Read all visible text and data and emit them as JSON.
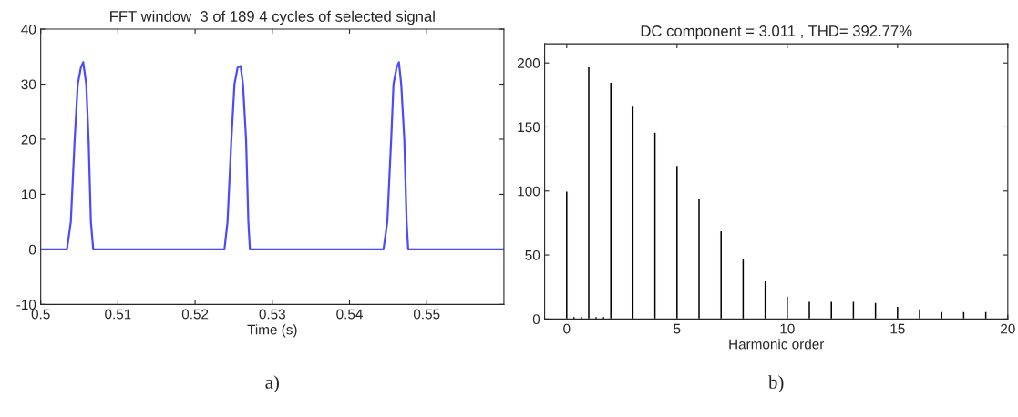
{
  "chart_data": [
    {
      "type": "line",
      "title": "FFT window  3 of 189 4 cycles of selected signal",
      "xlabel": "Time (s)",
      "annotations": [
        "a)"
      ],
      "xlim": [
        0.5,
        0.56
      ],
      "xticks": [
        0.5,
        0.51,
        0.52,
        0.53,
        0.54,
        0.55
      ],
      "ylim": [
        -10,
        40
      ],
      "yticks": [
        -10,
        0,
        10,
        20,
        30,
        40
      ],
      "grid": false,
      "legend": false,
      "series": [
        {
          "color": "#4a4aff",
          "x": [
            0.5,
            0.5034,
            0.5039,
            0.5044,
            0.5048,
            0.5052,
            0.5055,
            0.5059,
            0.5062,
            0.5065,
            0.5068,
            0.5238,
            0.5242,
            0.5247,
            0.5251,
            0.5255,
            0.5259,
            0.5262,
            0.5266,
            0.5269,
            0.5271,
            0.5444,
            0.5449,
            0.5454,
            0.5457,
            0.5461,
            0.5464,
            0.5467,
            0.5471,
            0.5474,
            0.5476,
            0.56
          ],
          "values": [
            0,
            0,
            5,
            20,
            30,
            33,
            34,
            30,
            20,
            5,
            0,
            0,
            5,
            20,
            30,
            33,
            33.3,
            30,
            20,
            5,
            0,
            0,
            5,
            20,
            30,
            33,
            34,
            30,
            20,
            5,
            0,
            0
          ]
        }
      ]
    },
    {
      "type": "bar",
      "title": "DC component = 3.011 , THD= 392.77%",
      "xlabel": "Harmonic order",
      "annotations": [
        "b)"
      ],
      "xlim": [
        -1,
        20
      ],
      "xticks": [
        0,
        5,
        10,
        15,
        20
      ],
      "ylim": [
        0,
        215
      ],
      "yticks": [
        0,
        50,
        100,
        150,
        200
      ],
      "grid": false,
      "legend": false,
      "series": [
        {
          "color": "#000000",
          "x": [
            0,
            0.33,
            0.67,
            1,
            1.33,
            1.67,
            2,
            2.33,
            2.67,
            3,
            3.33,
            3.67,
            4,
            4.33,
            4.67,
            5,
            5.33,
            5.67,
            6,
            6.33,
            6.67,
            7,
            7.33,
            7.67,
            8,
            8.33,
            8.67,
            9,
            9.33,
            9.67,
            10,
            10.33,
            10.67,
            11,
            11.33,
            11.67,
            12,
            12.33,
            12.67,
            13,
            13.33,
            13.67,
            14,
            14.33,
            14.67,
            15,
            15.33,
            15.67,
            16,
            16.33,
            16.67,
            17,
            17.33,
            17.67,
            18,
            18.33,
            18.67,
            19,
            19.33,
            19.67
          ],
          "values": [
            100,
            2,
            2,
            197,
            2,
            2,
            185,
            1,
            1,
            167,
            1,
            1,
            146,
            1,
            1,
            120,
            1,
            1,
            94,
            1,
            1,
            69,
            1,
            1,
            47,
            1,
            1,
            30,
            1,
            1,
            18,
            1,
            1,
            14,
            1,
            1,
            14,
            1,
            1,
            14,
            1,
            1,
            13,
            1,
            1,
            10,
            1,
            1,
            8,
            1,
            1,
            6,
            1,
            1,
            6,
            1,
            1,
            6,
            1,
            1
          ]
        }
      ]
    }
  ]
}
